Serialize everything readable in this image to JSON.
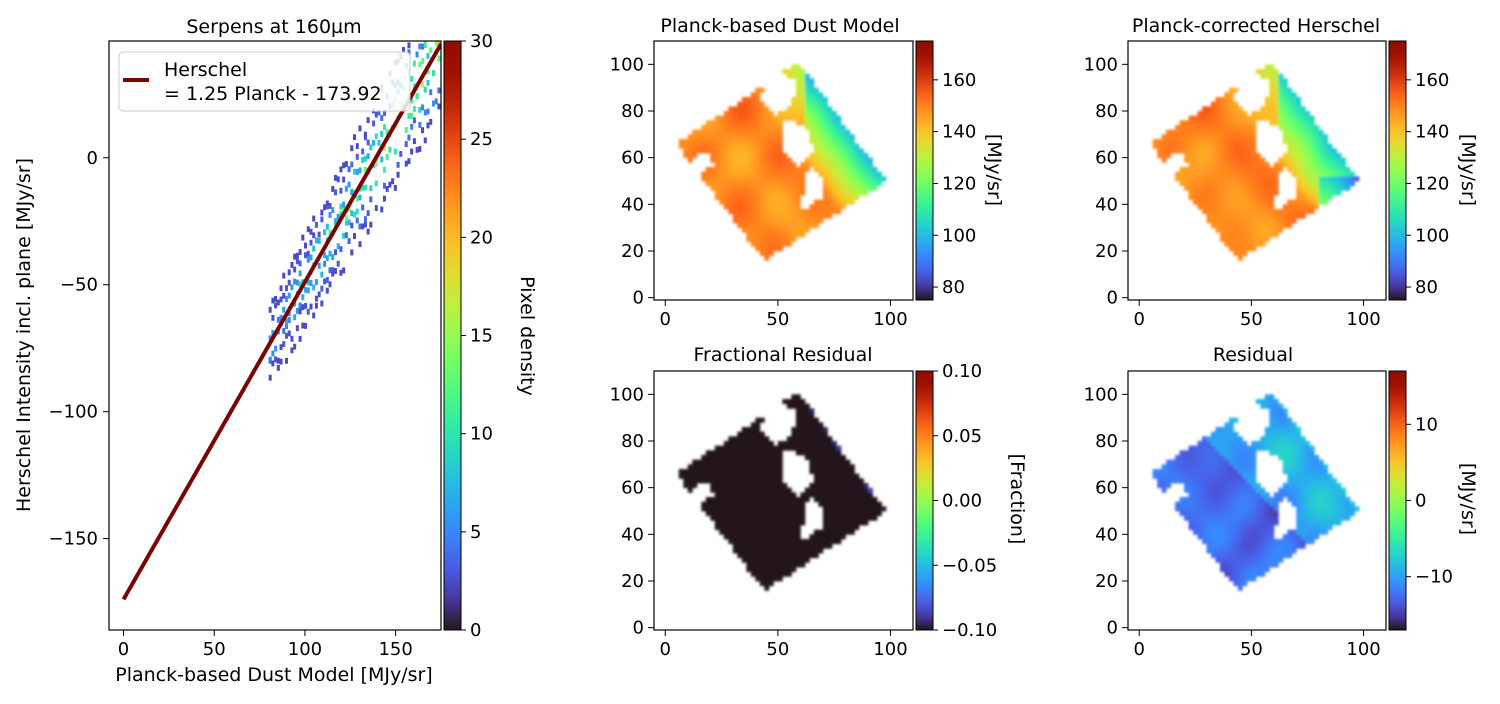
{
  "colors": {
    "fit_line": "#7a0403",
    "frame": "#000000",
    "background": "#ffffff"
  },
  "colormap": "turbo",
  "chart_data": [
    {
      "id": "scatter",
      "type": "heatmap",
      "subtype": "2d-histogram-with-fit",
      "title": "Serpens at 160µm",
      "xlabel": "Planck-based Dust Model [MJy/sr]",
      "ylabel": "Herschel Intensity incl. plane [MJy/sr]",
      "xlim": [
        -8,
        175
      ],
      "ylim": [
        -186,
        46
      ],
      "xticks": [
        0,
        50,
        100,
        150
      ],
      "xtick_labels": [
        "0",
        "50",
        "100",
        "150"
      ],
      "yticks": [
        0,
        -50,
        -100,
        -150
      ],
      "ytick_labels": [
        "0",
        "−50",
        "−100",
        "−150"
      ],
      "colorbar": {
        "label": "Pixel density",
        "range": [
          0,
          30
        ],
        "ticks": [
          0,
          5,
          10,
          15,
          20,
          25,
          30
        ],
        "tick_labels": [
          "0",
          "5",
          "10",
          "15",
          "20",
          "25",
          "30"
        ]
      },
      "fit": {
        "slope": 1.25,
        "intercept": -173.92,
        "x_range": [
          0,
          175
        ]
      },
      "legend": {
        "position": "top-left",
        "line1": "Herschel",
        "line2": "= 1.25 Planck - 173.92"
      },
      "density_cloud": {
        "x_range": [
          80,
          173
        ],
        "residual_sigma": 4.5,
        "peak_density": 13
      }
    },
    {
      "id": "planck-model",
      "type": "heatmap",
      "title": "Planck-based Dust Model",
      "xlim": [
        -5,
        110
      ],
      "ylim": [
        -1,
        110
      ],
      "ticks": [
        0,
        50,
        100
      ],
      "tick_labels": [
        "0",
        "50",
        "100"
      ],
      "yticks": [
        0,
        20,
        40,
        60,
        80,
        100
      ],
      "ytick_labels": [
        "0",
        "20",
        "40",
        "60",
        "80",
        "100"
      ],
      "colorbar": {
        "label": "[MJy/sr]",
        "range": [
          75,
          175
        ],
        "ticks": [
          80,
          100,
          120,
          140,
          160
        ],
        "tick_labels": [
          "80",
          "100",
          "120",
          "140",
          "160"
        ]
      }
    },
    {
      "id": "herschel-corrected",
      "type": "heatmap",
      "title": "Planck-corrected Herschel",
      "xlim": [
        -5,
        110
      ],
      "ylim": [
        -1,
        110
      ],
      "ticks": [
        0,
        50,
        100
      ],
      "tick_labels": [
        "0",
        "50",
        "100"
      ],
      "yticks": [
        0,
        20,
        40,
        60,
        80,
        100
      ],
      "ytick_labels": [
        "0",
        "20",
        "40",
        "60",
        "80",
        "100"
      ],
      "colorbar": {
        "label": "[MJy/sr]",
        "range": [
          75,
          175
        ],
        "ticks": [
          80,
          100,
          120,
          140,
          160
        ],
        "tick_labels": [
          "80",
          "100",
          "120",
          "140",
          "160"
        ]
      }
    },
    {
      "id": "fractional-residual",
      "type": "heatmap",
      "title": "Fractional Residual",
      "xlim": [
        -5,
        110
      ],
      "ylim": [
        -1,
        110
      ],
      "ticks": [
        0,
        50,
        100
      ],
      "tick_labels": [
        "0",
        "50",
        "100"
      ],
      "yticks": [
        0,
        20,
        40,
        60,
        80,
        100
      ],
      "ytick_labels": [
        "0",
        "20",
        "40",
        "60",
        "80",
        "100"
      ],
      "colorbar": {
        "label": "[Fraction]",
        "range": [
          -0.1,
          0.1
        ],
        "ticks": [
          0.1,
          0.05,
          0,
          -0.05,
          -0.1
        ],
        "tick_labels": [
          "0.10",
          "0.05",
          "0.00",
          "−0.05",
          "−0.10"
        ]
      }
    },
    {
      "id": "residual",
      "type": "heatmap",
      "title": "Residual",
      "xlim": [
        -5,
        110
      ],
      "ylim": [
        -1,
        110
      ],
      "ticks": [
        0,
        50,
        100
      ],
      "tick_labels": [
        "0",
        "50",
        "100"
      ],
      "yticks": [
        0,
        20,
        40,
        60,
        80,
        100
      ],
      "ytick_labels": [
        "0",
        "20",
        "40",
        "60",
        "80",
        "100"
      ],
      "colorbar": {
        "label": "[MJy/sr]",
        "range": [
          -17,
          17
        ],
        "ticks": [
          10,
          0,
          -10
        ],
        "tick_labels": [
          "10",
          "0",
          "−10"
        ]
      }
    }
  ],
  "map_region": {
    "corners": [
      [
        5,
        66
      ],
      [
        59,
        101
      ],
      [
        98,
        50
      ],
      [
        44,
        16
      ]
    ],
    "masked_holes": [
      [
        [
          49,
          97
        ],
        [
          59,
          93
        ],
        [
          56,
          82
        ],
        [
          48,
          78
        ],
        [
          41,
          86
        ]
      ],
      [
        [
          52,
          77
        ],
        [
          63,
          73
        ],
        [
          66,
          64
        ],
        [
          60,
          56
        ],
        [
          51,
          64
        ]
      ],
      [
        [
          64,
          56
        ],
        [
          71,
          51
        ],
        [
          70,
          42
        ],
        [
          64,
          40
        ],
        [
          61,
          48
        ]
      ],
      [
        [
          14,
          62
        ],
        [
          20,
          62
        ],
        [
          22,
          56
        ],
        [
          16,
          54
        ],
        [
          12,
          58
        ]
      ],
      [
        [
          60,
          44
        ],
        [
          64,
          43
        ],
        [
          63,
          37
        ],
        [
          60,
          38
        ]
      ]
    ]
  }
}
